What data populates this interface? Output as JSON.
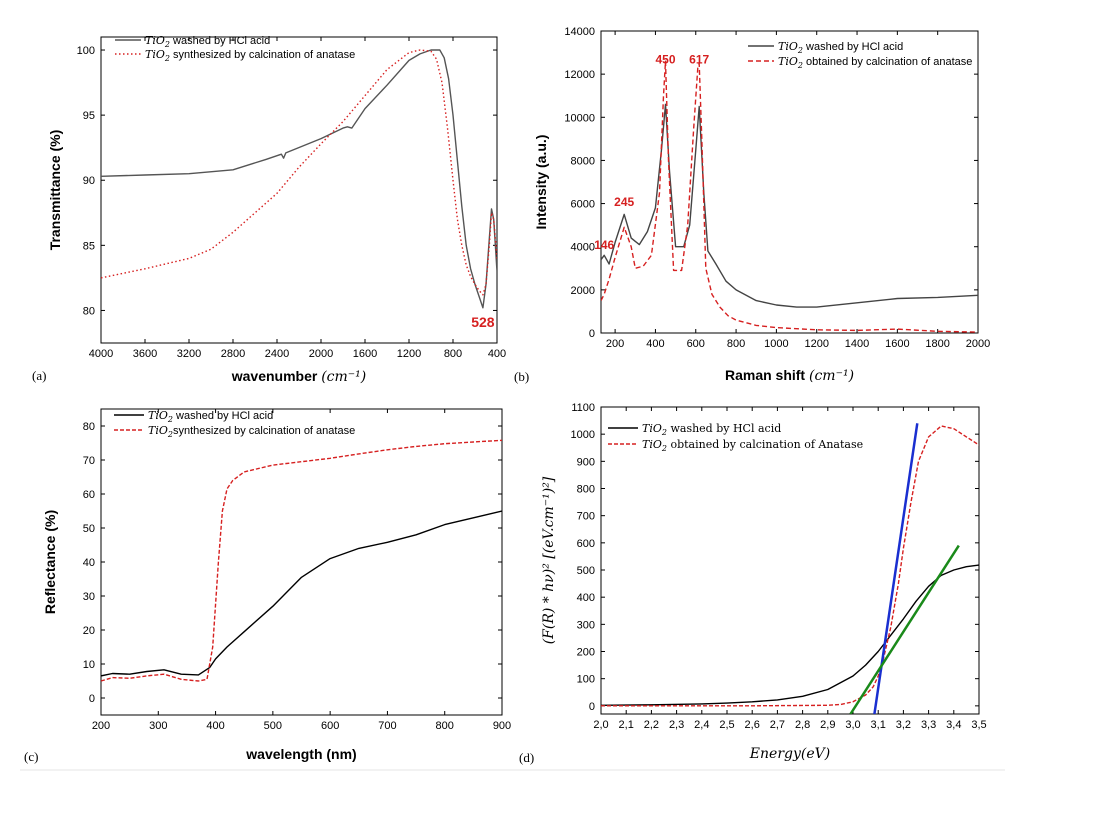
{
  "chart_data": [
    {
      "panel": "(a)",
      "type": "line",
      "xlabel_main": "wavenumber",
      "xlabel_unit": "(cm⁻¹)",
      "ylabel": "Transmittance (%)",
      "xlim": [
        4000,
        400
      ],
      "ylim": [
        77.5,
        101
      ],
      "xticks": [
        "4000",
        "3600",
        "3200",
        "2800",
        "2400",
        "2000",
        "1600",
        "1200",
        "800",
        "400"
      ],
      "xtick_values": [
        4000,
        3600,
        3200,
        2800,
        2400,
        2000,
        1600,
        1200,
        800,
        400
      ],
      "yticks": [
        "80",
        "85",
        "90",
        "95",
        "100"
      ],
      "ytick_values": [
        80,
        85,
        90,
        95,
        100
      ],
      "annotations": [
        {
          "text": "528",
          "x": 528,
          "y": 79.2
        }
      ],
      "series": [
        {
          "name": "washed",
          "legend_main": "TiO",
          "legend_sub": "2",
          "legend_rest": " washed by HCl acid",
          "color": "#555555",
          "dash": "",
          "x": [
            4000,
            3600,
            3200,
            2800,
            2500,
            2360,
            2340,
            2320,
            2000,
            1800,
            1760,
            1720,
            1600,
            1400,
            1200,
            1100,
            1000,
            920,
            880,
            840,
            800,
            760,
            720,
            680,
            640,
            600,
            560,
            528,
            500,
            470,
            450,
            430,
            400
          ],
          "y": [
            90.3,
            90.4,
            90.5,
            90.8,
            91.6,
            92.0,
            91.7,
            92.1,
            93.2,
            94.0,
            94.1,
            94.0,
            95.5,
            97.3,
            99.2,
            99.7,
            100.0,
            100.0,
            99.4,
            97.8,
            95.0,
            91.5,
            88.0,
            85.0,
            83.2,
            82.0,
            81.0,
            80.2,
            82.0,
            85.5,
            87.8,
            87.0,
            83.0
          ]
        },
        {
          "name": "anatase",
          "legend_main": "TiO",
          "legend_sub": "2",
          "legend_rest": " synthesized by calcination of  anatase",
          "color": "#d62020",
          "dash": "1.5,2.5",
          "x": [
            4000,
            3600,
            3200,
            3000,
            2800,
            2600,
            2400,
            2200,
            2000,
            1800,
            1600,
            1400,
            1200,
            1100,
            1000,
            950,
            900,
            850,
            800,
            760,
            720,
            680,
            640,
            600,
            560,
            528,
            500,
            470,
            450,
            430,
            400
          ],
          "y": [
            82.5,
            83.2,
            84.0,
            84.7,
            86.0,
            87.5,
            89.0,
            91.0,
            92.8,
            94.5,
            96.5,
            98.5,
            99.8,
            100.0,
            99.9,
            99.3,
            97.5,
            94.0,
            90.0,
            87.0,
            85.0,
            83.5,
            82.6,
            82.0,
            81.5,
            81.2,
            82.0,
            85.0,
            87.5,
            87.0,
            84.0
          ]
        }
      ]
    },
    {
      "panel": "(b)",
      "type": "line",
      "xlabel_main": "Raman shift",
      "xlabel_unit": "(cm⁻¹)",
      "ylabel": "Intensity (a.u.)",
      "xlim": [
        130,
        2000
      ],
      "ylim": [
        0,
        14000
      ],
      "xticks": [
        "200",
        "400",
        "600",
        "800",
        "1000",
        "1200",
        "1400",
        "1600",
        "1800",
        "2000"
      ],
      "xtick_values": [
        200,
        400,
        600,
        800,
        1000,
        1200,
        1400,
        1600,
        1800,
        2000
      ],
      "yticks": [
        "0",
        "2000",
        "4000",
        "6000",
        "8000",
        "10000",
        "12000",
        "14000"
      ],
      "ytick_values": [
        0,
        2000,
        4000,
        6000,
        8000,
        10000,
        12000,
        14000
      ],
      "annotations": [
        {
          "text": "146",
          "x": 146,
          "y": 3800
        },
        {
          "text": "245",
          "x": 245,
          "y": 5800
        },
        {
          "text": "450",
          "x": 450,
          "y": 12400
        },
        {
          "text": "617",
          "x": 617,
          "y": 12400
        }
      ],
      "series": [
        {
          "name": "washed",
          "legend_main": "TiO",
          "legend_sub": "2",
          "legend_rest": " washed by HCl acid",
          "color": "#444444",
          "dash": "",
          "x": [
            130,
            146,
            170,
            200,
            245,
            280,
            320,
            360,
            400,
            430,
            450,
            470,
            500,
            540,
            570,
            600,
            617,
            640,
            660,
            700,
            750,
            800,
            900,
            1000,
            1100,
            1200,
            1400,
            1600,
            1800,
            2000
          ],
          "y": [
            3400,
            3600,
            3200,
            4200,
            5500,
            4400,
            4100,
            4700,
            5800,
            8500,
            10600,
            7500,
            4000,
            4000,
            5000,
            8500,
            10500,
            6500,
            3800,
            3200,
            2400,
            2000,
            1500,
            1300,
            1200,
            1200,
            1400,
            1600,
            1650,
            1750
          ]
        },
        {
          "name": "anatase",
          "legend_main": "TiO",
          "legend_sub": "2",
          "legend_rest": " obtained by calcination of anatase",
          "color": "#d62020",
          "dash": "5,3",
          "x": [
            130,
            146,
            170,
            200,
            245,
            280,
            300,
            340,
            380,
            420,
            440,
            450,
            465,
            490,
            530,
            560,
            590,
            610,
            617,
            630,
            650,
            680,
            720,
            760,
            800,
            900,
            1000,
            1200,
            1400,
            1600,
            1800,
            2000
          ],
          "y": [
            1500,
            1800,
            2500,
            3500,
            4900,
            4000,
            3000,
            3100,
            3600,
            6500,
            11000,
            12600,
            8000,
            2900,
            2900,
            5000,
            9500,
            12300,
            12500,
            9000,
            3000,
            1800,
            1200,
            800,
            600,
            350,
            250,
            150,
            120,
            180,
            80,
            40
          ]
        }
      ]
    },
    {
      "panel": "(c)",
      "type": "line",
      "xlabel_main": "wavelength (nm)",
      "ylabel": "Reflectance (%)",
      "xlim": [
        200,
        900
      ],
      "ylim": [
        -5,
        85
      ],
      "xticks": [
        "200",
        "300",
        "400",
        "500",
        "600",
        "700",
        "800",
        "900"
      ],
      "xtick_values": [
        200,
        300,
        400,
        500,
        600,
        700,
        800,
        900
      ],
      "yticks": [
        "0",
        "10",
        "20",
        "30",
        "40",
        "50",
        "60",
        "70",
        "80"
      ],
      "ytick_values": [
        0,
        10,
        20,
        30,
        40,
        50,
        60,
        70,
        80
      ],
      "series": [
        {
          "name": "washed",
          "legend_main": "TiO",
          "legend_sub": "2",
          "legend_rest": " washed by HCl acid",
          "color": "#000000",
          "dash": "",
          "x": [
            200,
            220,
            250,
            280,
            310,
            340,
            370,
            390,
            400,
            420,
            450,
            500,
            550,
            600,
            650,
            700,
            750,
            800,
            850,
            900
          ],
          "y": [
            6.5,
            7.2,
            7.0,
            7.8,
            8.3,
            7.0,
            6.8,
            9.0,
            11.5,
            15.0,
            19.5,
            27.0,
            35.5,
            41.0,
            44.0,
            45.8,
            48.0,
            51.0,
            53.0,
            55.0
          ]
        },
        {
          "name": "anatase",
          "legend_main": "TiO",
          "legend_sub": "2",
          "legend_rest": "synthesized by calcination of anatase",
          "color": "#d62020",
          "dash": "4,2",
          "x": [
            200,
            220,
            250,
            280,
            310,
            340,
            370,
            385,
            395,
            405,
            412,
            420,
            430,
            450,
            500,
            550,
            600,
            650,
            700,
            750,
            800,
            850,
            900
          ],
          "y": [
            5.0,
            6.0,
            5.8,
            6.5,
            7.0,
            5.5,
            5.0,
            5.5,
            15.0,
            40.0,
            55.0,
            61.5,
            64.0,
            66.5,
            68.5,
            69.5,
            70.5,
            71.8,
            73.0,
            74.0,
            74.8,
            75.3,
            75.8
          ]
        }
      ]
    },
    {
      "panel": "(d)",
      "type": "line",
      "xlabel_main": "Energy(eV)",
      "ylabel": "(F(R) * hν)² [(eV.cm⁻¹)²]",
      "xlim": [
        2.0,
        3.5
      ],
      "ylim": [
        -30,
        1100
      ],
      "xticks": [
        "2,0",
        "2,1",
        "2,2",
        "2,3",
        "2,4",
        "2,5",
        "2,6",
        "2,7",
        "2,8",
        "2,9",
        "3,0",
        "3,1",
        "3,2",
        "3,3",
        "3,4",
        "3,5"
      ],
      "xtick_values": [
        2.0,
        2.1,
        2.2,
        2.3,
        2.4,
        2.5,
        2.6,
        2.7,
        2.8,
        2.9,
        3.0,
        3.1,
        3.2,
        3.3,
        3.4,
        3.5
      ],
      "yticks": [
        "0",
        "100",
        "200",
        "300",
        "400",
        "500",
        "600",
        "700",
        "800",
        "900",
        "1000",
        "1100"
      ],
      "ytick_values": [
        0,
        100,
        200,
        300,
        400,
        500,
        600,
        700,
        800,
        900,
        1000,
        1100
      ],
      "series": [
        {
          "name": "washed",
          "legend_main": "TiO",
          "legend_sub": "2",
          "legend_rest": " washed by HCl acid",
          "color": "#000000",
          "dash": "",
          "x": [
            2.0,
            2.2,
            2.4,
            2.5,
            2.6,
            2.7,
            2.8,
            2.9,
            2.95,
            3.0,
            3.05,
            3.1,
            3.15,
            3.2,
            3.25,
            3.3,
            3.35,
            3.4,
            3.45,
            3.5
          ],
          "y": [
            2,
            4,
            7,
            10,
            15,
            22,
            35,
            60,
            85,
            110,
            150,
            200,
            260,
            320,
            385,
            440,
            480,
            500,
            512,
            518
          ]
        },
        {
          "name": "anatase",
          "legend_main": "TiO",
          "legend_sub": "2",
          "legend_rest": " obtained by calcination of Anatase",
          "color": "#d62020",
          "dash": "4,2",
          "x": [
            2.0,
            2.6,
            2.9,
            2.95,
            3.0,
            3.05,
            3.08,
            3.1,
            3.12,
            3.15,
            3.18,
            3.2,
            3.23,
            3.26,
            3.3,
            3.35,
            3.4,
            3.45,
            3.5
          ],
          "y": [
            0,
            0,
            2,
            5,
            15,
            40,
            70,
            110,
            170,
            290,
            450,
            580,
            750,
            900,
            990,
            1030,
            1020,
            990,
            960
          ]
        },
        {
          "name": "tangent-blue",
          "color": "#1a2fd0",
          "dash": "",
          "width": 2.5,
          "nolegend": true,
          "x": [
            3.085,
            3.255
          ],
          "y": [
            -30,
            1040
          ]
        },
        {
          "name": "tangent-green",
          "color": "#1a8a1a",
          "dash": "",
          "width": 2.5,
          "nolegend": true,
          "x": [
            2.99,
            3.42
          ],
          "y": [
            -30,
            590
          ]
        }
      ]
    }
  ]
}
